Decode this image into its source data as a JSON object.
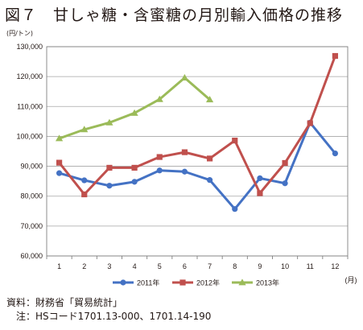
{
  "figure": {
    "title": "図７　甘しゃ糖・含蜜糖の月別輸入価格の推移",
    "source": "資料：財務省「貿易統計」",
    "note": "注：HSコード1701.13-000、1701.14-190"
  },
  "chart_data": {
    "type": "line",
    "y_unit": "(円/トン)",
    "x_unit": "(月)",
    "categories": [
      "1",
      "2",
      "3",
      "4",
      "5",
      "6",
      "7",
      "8",
      "9",
      "10",
      "11",
      "12"
    ],
    "ylim": [
      60000,
      130000
    ],
    "y_ticks": [
      "60,000",
      "70,000",
      "80,000",
      "90,000",
      "100,000",
      "110,000",
      "120,000",
      "130,000"
    ],
    "grid": true,
    "legend_position": "bottom",
    "series": [
      {
        "name": "2011年",
        "color": "#4472c4",
        "marker": "circle",
        "values": [
          87700,
          85300,
          83500,
          84800,
          88600,
          88200,
          85400,
          75700,
          86000,
          84300,
          104600,
          94300
        ]
      },
      {
        "name": "2012年",
        "color": "#c0504d",
        "marker": "square",
        "values": [
          91200,
          80600,
          89500,
          89500,
          93100,
          94700,
          92600,
          98600,
          81000,
          91100,
          104400,
          126900
        ]
      },
      {
        "name": "2013年",
        "color": "#9bbb59",
        "marker": "triangle",
        "values": [
          99300,
          102300,
          104600,
          107800,
          112400,
          119600,
          112300,
          null,
          null,
          null,
          null,
          null
        ]
      }
    ]
  }
}
